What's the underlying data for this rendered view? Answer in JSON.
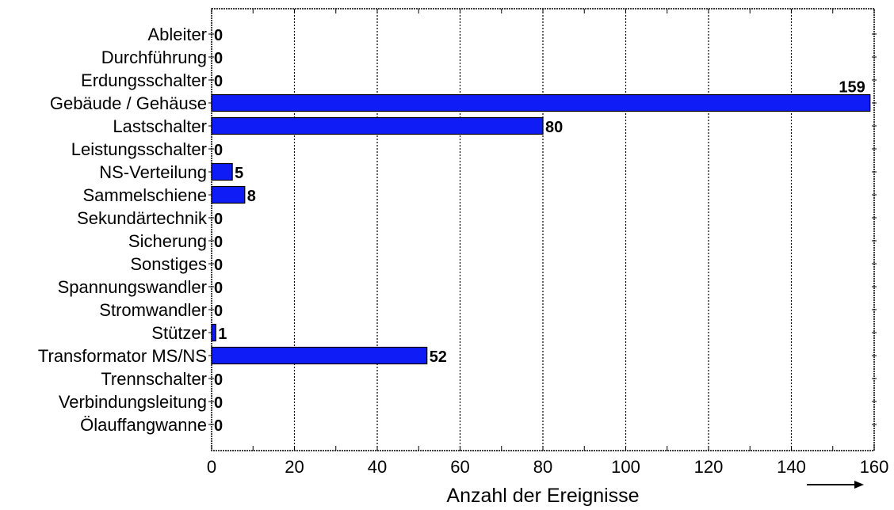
{
  "chart_data": {
    "type": "bar",
    "orientation": "horizontal",
    "categories": [
      "Ableiter",
      "Durchführung",
      "Erdungsschalter",
      "Gebäude / Gehäuse",
      "Lastschalter",
      "Leistungsschalter",
      "NS-Verteilung",
      "Sammelschiene",
      "Sekundärtechnik",
      "Sicherung",
      "Sonstiges",
      "Spannungswandler",
      "Stromwandler",
      "Stützer",
      "Transformator MS/NS",
      "Trennschalter",
      "Verbindungsleitung",
      "Ölauffangwanne"
    ],
    "values": [
      0,
      0,
      0,
      159,
      80,
      0,
      5,
      8,
      0,
      0,
      0,
      0,
      0,
      1,
      52,
      0,
      0,
      0
    ],
    "data_labels": [
      "0",
      "0",
      "0",
      "159",
      "80",
      "0",
      "5",
      "8",
      "0",
      "0",
      "0",
      "0",
      "0",
      "1",
      "52",
      "0",
      "0",
      "0"
    ],
    "title": "",
    "xlabel": "Anzahl der Ereignisse",
    "ylabel": "",
    "xlim": [
      0,
      160
    ],
    "xticks": [
      "0",
      "20",
      "40",
      "60",
      "80",
      "100",
      "120",
      "140",
      "160"
    ],
    "grid": "vertical dotted",
    "legend": "none",
    "bar_color": "#0f1cf5",
    "axis_arrow": "right"
  }
}
